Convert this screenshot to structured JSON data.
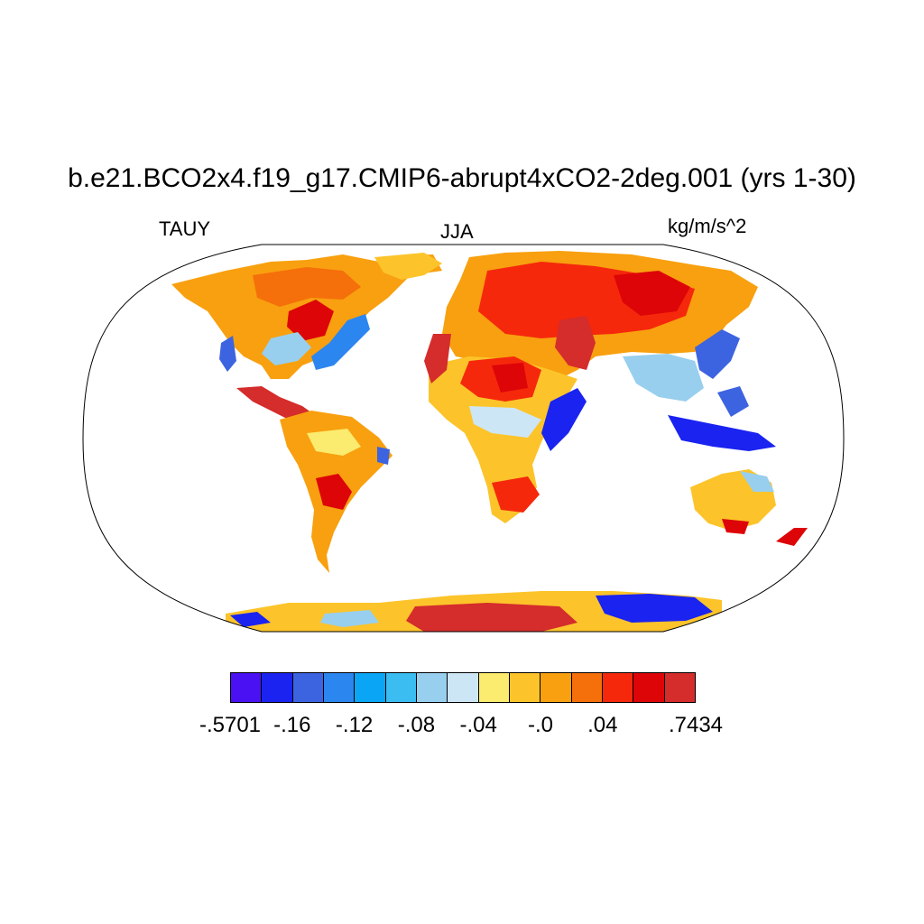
{
  "title": "b.e21.BCO2x4.f19_g17.CMIP6-abrupt4xCO2-2deg.001 (yrs 1-30)",
  "left_label": "TAUY",
  "center_label": "JJA",
  "right_label": "kg/m/s^2",
  "colorbar": {
    "colors": [
      "#4a12f2",
      "#1a23f0",
      "#3d64e0",
      "#2c86ef",
      "#0aa6f5",
      "#3cbdf2",
      "#98cfee",
      "#cde6f6",
      "#fbeb6e",
      "#fcc42a",
      "#f8a00f",
      "#f56f0a",
      "#f5280c",
      "#dd0508",
      "#d52c2c"
    ],
    "tick_labels": [
      {
        "label": "-.5701",
        "boundary": 0
      },
      {
        "label": "-.16",
        "boundary": 2
      },
      {
        "label": "-.12",
        "boundary": 4
      },
      {
        "label": "-.08",
        "boundary": 6
      },
      {
        "label": "-.04",
        "boundary": 8
      },
      {
        "label": "-.0",
        "boundary": 10
      },
      {
        "label": ".04",
        "boundary": 12
      },
      {
        "label": ".7434",
        "boundary": 15
      }
    ]
  }
}
